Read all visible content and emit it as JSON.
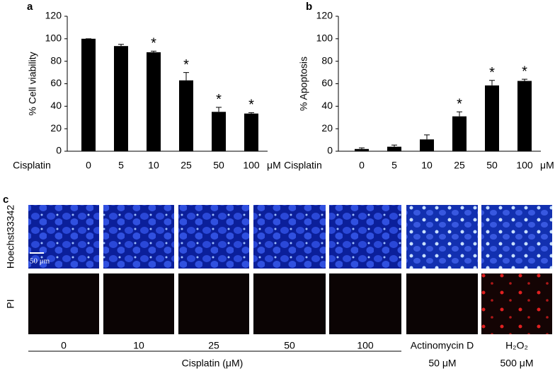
{
  "chart_data": [
    {
      "type": "bar",
      "panel": "a",
      "ylabel": "% Cell viability",
      "xlabel": "Cisplatin",
      "x_unit": "μM",
      "categories": [
        "0",
        "5",
        "10",
        "25",
        "50",
        "100"
      ],
      "values": [
        100,
        93.5,
        88,
        63,
        35,
        33.5
      ],
      "errors": [
        0,
        1.5,
        1,
        7,
        4,
        0.8
      ],
      "value_annotations": [
        null,
        null,
        "*",
        "*",
        "*",
        "*"
      ],
      "color": "#000000",
      "ylim": [
        0,
        120
      ],
      "yticks": [
        0,
        20,
        40,
        60,
        80,
        100,
        120
      ]
    },
    {
      "type": "bar",
      "panel": "b",
      "ylabel": "% Apoptosis",
      "xlabel": "Cisplatin",
      "x_unit": "μM",
      "categories": [
        "0",
        "5",
        "10",
        "25",
        "50",
        "100"
      ],
      "values": [
        2,
        4,
        10.5,
        31,
        58.5,
        62.5
      ],
      "errors": [
        1,
        1.5,
        4,
        4,
        4.5,
        1.5
      ],
      "value_annotations": [
        null,
        null,
        null,
        "*",
        "*",
        "*"
      ],
      "color": "#000000",
      "ylim": [
        0,
        120
      ],
      "yticks": [
        0,
        20,
        40,
        60,
        80,
        100,
        120
      ]
    }
  ],
  "panel_c": {
    "panel": "c",
    "rows": [
      "Hoechst33342",
      "PI"
    ],
    "scale_bar": "50 μm",
    "columns": [
      "0",
      "10",
      "25",
      "50",
      "100",
      "Actinomycin D",
      "H₂O₂"
    ],
    "group_label": "Cisplatin (μM)",
    "doses": [
      "50 μM",
      "500 μM"
    ]
  }
}
